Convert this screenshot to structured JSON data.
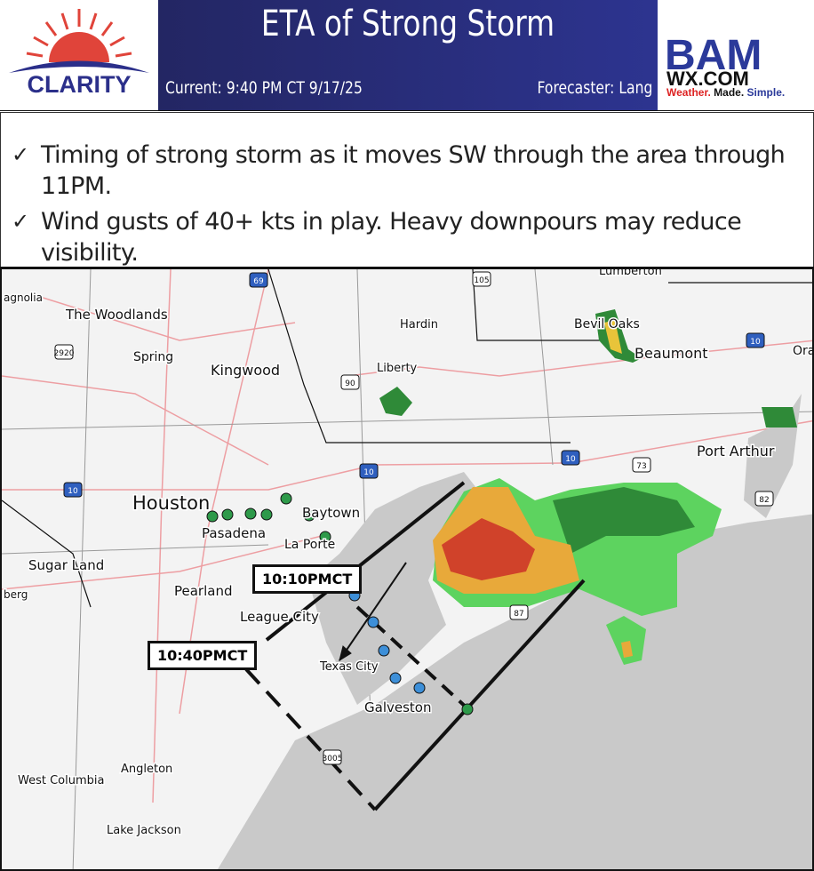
{
  "header": {
    "left_logo": "CLARITY",
    "title": "ETA of Strong Storm",
    "current": "Current: 9:40 PM CT  9/17/25",
    "forecaster": "Forecaster: Lang",
    "right_logo": {
      "main": "BAM",
      "sub": "WX.COM",
      "tagline": [
        "Weather.",
        "Made.",
        "Simple."
      ]
    }
  },
  "bullets": [
    "Timing of strong storm as it moves SW through the area through 11PM.",
    "Wind gusts of 40+ kts in play. Heavy downpours may reduce visibility."
  ],
  "map": {
    "cities": [
      "agnolia",
      "The Woodlands",
      "Spring",
      "Kingwood",
      "Hardin",
      "Liberty",
      "Bevil Oaks",
      "Beaumont",
      "Ora",
      "Lumberton",
      "Port Arthur",
      "Houston",
      "Baytown",
      "Pasadena",
      "La Porte",
      "Sugar Land",
      "Pearland",
      "League City",
      "Texas City",
      "Galveston",
      "berg",
      "Angleton",
      "West Columbia",
      "Lake Jackson"
    ],
    "highways": [
      "69",
      "105",
      "2920",
      "90",
      "10",
      "10",
      "10",
      "10",
      "73",
      "82",
      "87",
      "3005"
    ],
    "callouts": [
      "10:10PMCT",
      "10:40PMCT"
    ],
    "colors": {
      "water": "#c9c9c9",
      "land": "#f3f3f3",
      "box": "#111111",
      "marker_green": "#2e9a4a",
      "marker_blue": "#3d8fd8"
    }
  }
}
